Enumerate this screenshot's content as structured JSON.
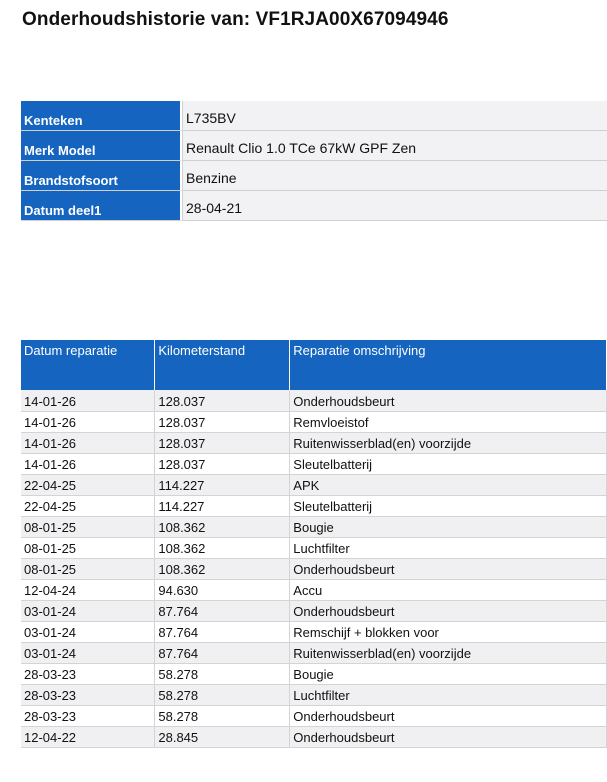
{
  "title": "Onderhoudshistorie van: VF1RJA00X67094946",
  "vehicle": [
    {
      "label": "Kenteken",
      "value": "L735BV"
    },
    {
      "label": "Merk Model",
      "value": "Renault Clio 1.0 TCe 67kW GPF Zen"
    },
    {
      "label": "Brandstofsoort",
      "value": "Benzine"
    },
    {
      "label": "Datum deel1",
      "value": "28-04-21"
    }
  ],
  "history": {
    "headers": [
      "Datum reparatie",
      "Kilometerstand",
      "Reparatie omschrijving"
    ],
    "rows": [
      [
        "14-01-26",
        "128.037",
        "Onderhoudsbeurt"
      ],
      [
        "14-01-26",
        "128.037",
        "Remvloeistof"
      ],
      [
        "14-01-26",
        "128.037",
        "Ruitenwisserblad(en) voorzijde"
      ],
      [
        "14-01-26",
        "128.037",
        "Sleutelbatterij"
      ],
      [
        "22-04-25",
        "114.227",
        "APK"
      ],
      [
        "22-04-25",
        "114.227",
        "Sleutelbatterij"
      ],
      [
        "08-01-25",
        "108.362",
        "Bougie"
      ],
      [
        "08-01-25",
        "108.362",
        "Luchtfilter"
      ],
      [
        "08-01-25",
        "108.362",
        "Onderhoudsbeurt"
      ],
      [
        "12-04-24",
        "94.630",
        "Accu"
      ],
      [
        "03-01-24",
        "87.764",
        "Onderhoudsbeurt"
      ],
      [
        "03-01-24",
        "87.764",
        "Remschijf + blokken voor"
      ],
      [
        "03-01-24",
        "87.764",
        "Ruitenwisserblad(en) voorzijde"
      ],
      [
        "28-03-23",
        "58.278",
        "Bougie"
      ],
      [
        "28-03-23",
        "58.278",
        "Luchtfilter"
      ],
      [
        "28-03-23",
        "58.278",
        "Onderhoudsbeurt"
      ],
      [
        "12-04-22",
        "28.845",
        "Onderhoudsbeurt"
      ]
    ]
  }
}
